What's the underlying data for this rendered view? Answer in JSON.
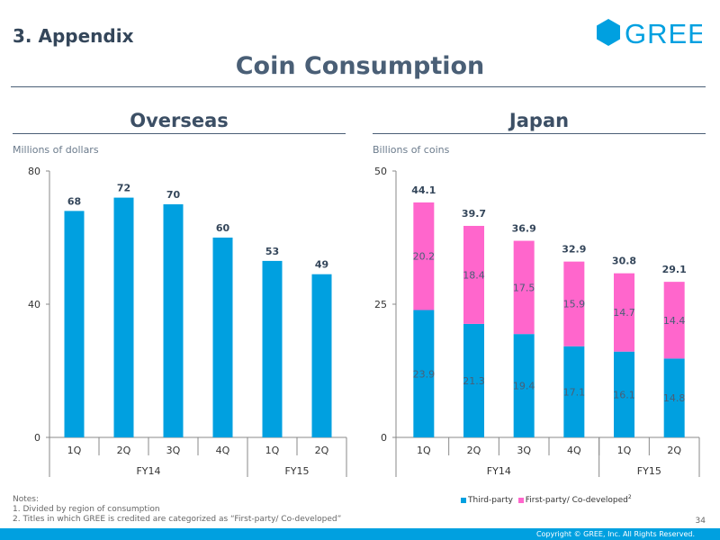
{
  "header": {
    "section": "3. Appendix",
    "title": "Coin Consumption",
    "logo_text": "GREE"
  },
  "colors": {
    "accent": "#00a0e0",
    "third_party": "#00a0e0",
    "first_party": "#ff66cc",
    "title": "#4a5f76"
  },
  "panels": {
    "left": {
      "title": "Overseas",
      "unit": "Millions of dollars"
    },
    "right": {
      "title": "Japan",
      "unit": "Billions of coins"
    }
  },
  "legend": {
    "third_party": "Third-party",
    "first_party": "First-party/ Co-developed",
    "first_party_note": "2"
  },
  "notes": {
    "heading": "Notes:",
    "lines": [
      "1. Divided by region of consumption",
      "2. Titles in which GREE is credited are categorized as “First-party/ Co-developed”"
    ]
  },
  "page_number": "34",
  "footer": {
    "copyright": "Copyright © GREE, Inc. All Rights Reserved."
  },
  "chart_data": [
    {
      "type": "bar",
      "title": "Overseas",
      "ylabel": "Millions of dollars",
      "categories": [
        "1Q",
        "2Q",
        "3Q",
        "4Q",
        "1Q",
        "2Q"
      ],
      "groups": [
        {
          "label": "FY14",
          "count": 4
        },
        {
          "label": "FY15",
          "count": 2
        }
      ],
      "values": [
        68,
        72,
        70,
        60,
        53,
        49
      ],
      "y_ticks": [
        "0",
        "40",
        "80"
      ],
      "yticks": [
        0,
        40,
        80
      ],
      "ylim": [
        0,
        80
      ]
    },
    {
      "type": "bar",
      "stacked": true,
      "title": "Japan",
      "ylabel": "Billions of coins",
      "categories": [
        "1Q",
        "2Q",
        "3Q",
        "4Q",
        "1Q",
        "2Q"
      ],
      "groups": [
        {
          "label": "FY14",
          "count": 4
        },
        {
          "label": "FY15",
          "count": 2
        }
      ],
      "series": [
        {
          "name": "Third-party",
          "values": [
            23.9,
            21.3,
            19.4,
            17.1,
            16.1,
            14.8
          ]
        },
        {
          "name": "First-party/ Co-developed",
          "values": [
            20.2,
            18.4,
            17.5,
            15.9,
            14.7,
            14.4
          ]
        }
      ],
      "totals": [
        44.1,
        39.7,
        36.9,
        32.9,
        30.8,
        29.1
      ],
      "y_ticks": [
        "0",
        "25",
        "50"
      ],
      "yticks": [
        0,
        25,
        50
      ],
      "ylim": [
        0,
        50
      ]
    }
  ]
}
